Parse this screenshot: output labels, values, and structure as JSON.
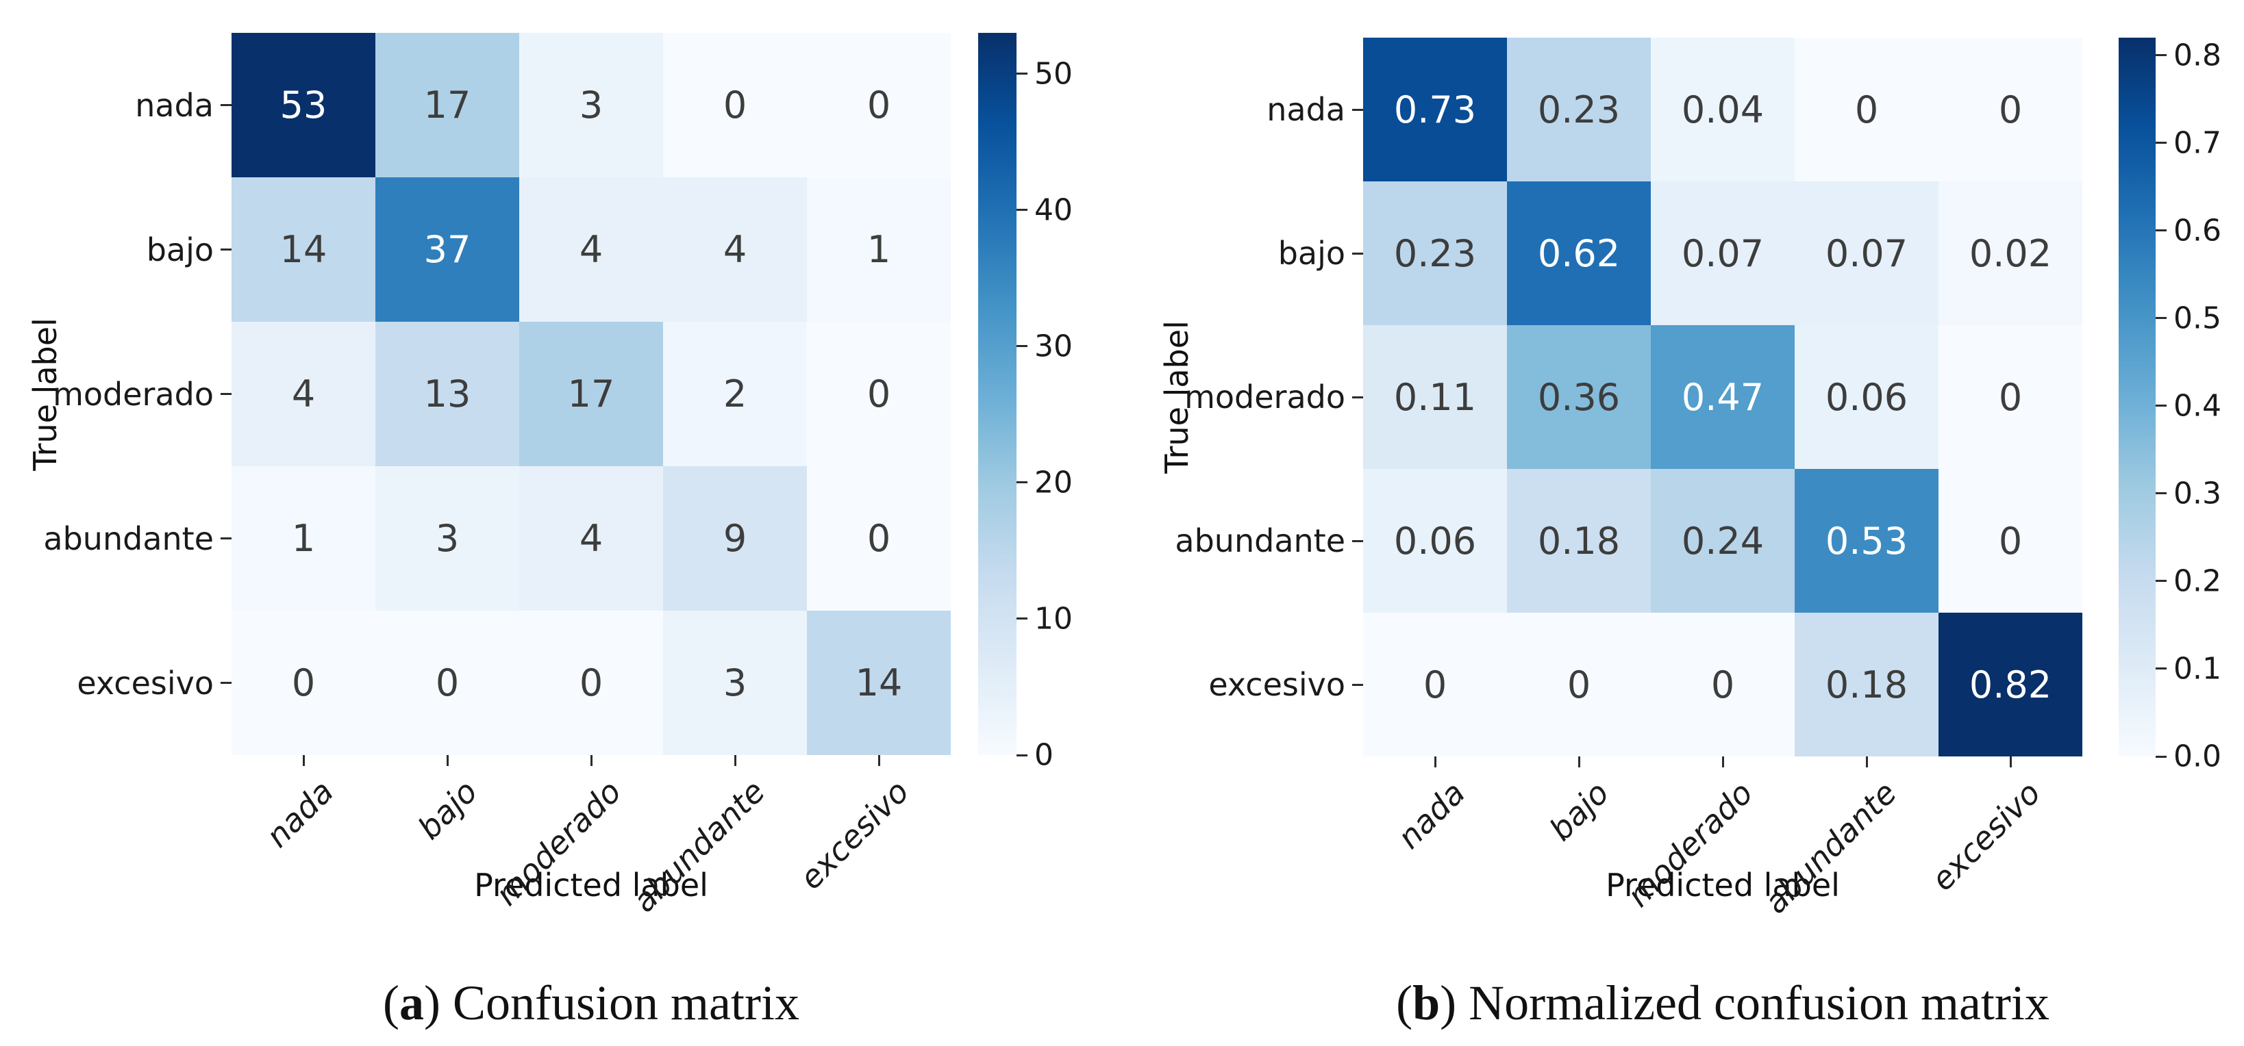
{
  "chart_data": [
    {
      "type": "heatmap",
      "title": "(a) Confusion matrix",
      "caption_open": "(",
      "caption_letter": "a",
      "caption_rest": ") Confusion matrix",
      "xlabel": "Predicted label",
      "ylabel": "True label",
      "categories": [
        "nada",
        "bajo",
        "moderado",
        "abundante",
        "excesivo"
      ],
      "rows": [
        [
          "53",
          "17",
          "3",
          "0",
          "0"
        ],
        [
          "14",
          "37",
          "4",
          "4",
          "1"
        ],
        [
          "4",
          "13",
          "17",
          "2",
          "0"
        ],
        [
          "1",
          "3",
          "4",
          "9",
          "0"
        ],
        [
          "0",
          "0",
          "0",
          "3",
          "14"
        ]
      ],
      "vmin": 0,
      "vmax": 53,
      "colormap": "Blues",
      "colormap_min_hex": "#f7fbff",
      "colormap_max_hex": "#08306b",
      "colorbar_ticks": [
        "0",
        "10",
        "20",
        "30",
        "40",
        "50"
      ],
      "legend_position": "right-colorbar",
      "grid": false
    },
    {
      "type": "heatmap",
      "title": "(b) Normalized confusion matrix",
      "caption_open": "(",
      "caption_letter": "b",
      "caption_rest": ") Normalized confusion matrix",
      "xlabel": "Predicted label",
      "ylabel": "True label",
      "categories": [
        "nada",
        "bajo",
        "moderado",
        "abundante",
        "excesivo"
      ],
      "rows": [
        [
          "0.73",
          "0.23",
          "0.04",
          "0",
          "0"
        ],
        [
          "0.23",
          "0.62",
          "0.07",
          "0.07",
          "0.02"
        ],
        [
          "0.11",
          "0.36",
          "0.47",
          "0.06",
          "0"
        ],
        [
          "0.06",
          "0.18",
          "0.24",
          "0.53",
          "0"
        ],
        [
          "0",
          "0",
          "0",
          "0.18",
          "0.82"
        ]
      ],
      "vmin": 0,
      "vmax": 0.82,
      "colormap": "Blues",
      "colormap_min_hex": "#f7fbff",
      "colormap_max_hex": "#08306b",
      "colorbar_ticks": [
        "0.0",
        "0.1",
        "0.2",
        "0.3",
        "0.4",
        "0.5",
        "0.6",
        "0.7",
        "0.8"
      ],
      "legend_position": "right-colorbar",
      "grid": false
    }
  ]
}
